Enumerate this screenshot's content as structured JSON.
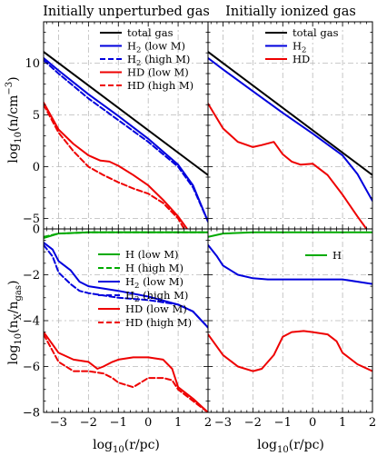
{
  "figure": {
    "titles": [
      "Initially unperturbed gas",
      "Initially ionized gas"
    ],
    "xlabel": "log10(r/pc)",
    "ylabel_top": "log10(n/cm−3)",
    "ylabel_bottom": "log10(nX/ngas)"
  },
  "chart_data": [
    {
      "type": "line",
      "title": "Initially unperturbed gas",
      "xlabel": "",
      "ylabel": "log10(n/cm−3)",
      "xlim": [
        -3.5,
        2
      ],
      "ylim": [
        -6,
        14
      ],
      "xticks": [
        -3,
        -2,
        -1,
        0,
        1,
        2
      ],
      "yticks": [
        -5,
        0,
        5,
        10
      ],
      "grid": true,
      "legend": "top-right",
      "series": [
        {
          "name": "total gas",
          "color": "#000000",
          "dash": "solid",
          "x": [
            -3.5,
            2
          ],
          "y": [
            11.1,
            -0.8
          ]
        },
        {
          "name": "H2 (low M)",
          "color": "#0000dd",
          "dash": "solid",
          "x": [
            -3.5,
            -3.0,
            -2.0,
            -1.0,
            0.0,
            1.0,
            1.5,
            2.0
          ],
          "y": [
            10.5,
            9.3,
            7.0,
            4.9,
            2.7,
            0.2,
            -1.8,
            -5.3
          ]
        },
        {
          "name": "H2 (high M)",
          "color": "#0000dd",
          "dash": "dashed",
          "x": [
            -3.5,
            -3.0,
            -2.0,
            -1.0,
            0.0,
            1.0,
            1.5,
            2.0
          ],
          "y": [
            10.3,
            9.0,
            6.6,
            4.5,
            2.4,
            0.0,
            -2.0,
            -5.3
          ]
        },
        {
          "name": "HD (low M)",
          "color": "#ee0000",
          "dash": "solid",
          "x": [
            -3.5,
            -3.0,
            -2.5,
            -2.0,
            -1.6,
            -1.3,
            -1.0,
            -0.5,
            0.0,
            0.5,
            1.0,
            1.3
          ],
          "y": [
            6.2,
            3.6,
            2.2,
            1.1,
            0.6,
            0.5,
            0.1,
            -0.8,
            -1.8,
            -3.2,
            -4.8,
            -6.0
          ]
        },
        {
          "name": "HD (high M)",
          "color": "#ee0000",
          "dash": "dashed",
          "x": [
            -3.5,
            -3.0,
            -2.5,
            -2.0,
            -1.5,
            -1.0,
            -0.5,
            0.0,
            0.5,
            1.0,
            1.2
          ],
          "y": [
            6.0,
            3.3,
            1.5,
            0.0,
            -0.8,
            -1.5,
            -2.1,
            -2.6,
            -3.5,
            -5.0,
            -6.0
          ]
        }
      ]
    },
    {
      "type": "line",
      "title": "Initially ionized gas",
      "xlabel": "",
      "ylabel": "",
      "xlim": [
        -3.5,
        2
      ],
      "ylim": [
        -6,
        14
      ],
      "xticks": [
        -3,
        -2,
        -1,
        0,
        1,
        2
      ],
      "yticks": [
        -5,
        0,
        5,
        10
      ],
      "grid": true,
      "legend": "top-right",
      "series": [
        {
          "name": "total gas",
          "color": "#000000",
          "dash": "solid",
          "x": [
            -3.5,
            2
          ],
          "y": [
            11.1,
            -0.8
          ]
        },
        {
          "name": "H2",
          "color": "#0000dd",
          "dash": "solid",
          "x": [
            -3.5,
            -3.0,
            -2.0,
            -1.0,
            0.0,
            1.0,
            1.5,
            2.0
          ],
          "y": [
            10.5,
            9.4,
            7.3,
            5.2,
            3.2,
            1.1,
            -0.7,
            -3.3
          ]
        },
        {
          "name": "HD",
          "color": "#ee0000",
          "dash": "solid",
          "x": [
            -3.5,
            -3.0,
            -2.5,
            -2.0,
            -1.7,
            -1.3,
            -1.0,
            -0.7,
            -0.4,
            0.0,
            0.5,
            1.0,
            1.5,
            1.8
          ],
          "y": [
            6.1,
            3.7,
            2.4,
            1.9,
            2.1,
            2.4,
            1.2,
            0.5,
            0.2,
            0.3,
            -0.8,
            -2.7,
            -4.8,
            -6.0
          ]
        }
      ]
    },
    {
      "type": "line",
      "title": "",
      "xlabel": "log10(r/pc)",
      "ylabel": "log10(nX/ngas)",
      "xlim": [
        -3.5,
        2
      ],
      "ylim": [
        -8,
        0
      ],
      "xticks": [
        -3,
        -2,
        -1,
        0,
        1,
        2
      ],
      "yticks": [
        -8,
        -6,
        -4,
        -2,
        0
      ],
      "grid": true,
      "legend": "upper-right",
      "series": [
        {
          "name": "H (low M)",
          "color": "#00aa00",
          "dash": "solid",
          "x": [
            -3.5,
            -3.0,
            -2.0,
            2.0
          ],
          "y": [
            -0.4,
            -0.2,
            -0.15,
            -0.15
          ]
        },
        {
          "name": "H (high M)",
          "color": "#00aa00",
          "dash": "dashed",
          "x": [
            -3.5,
            -3.0,
            -2.0,
            2.0
          ],
          "y": [
            -0.35,
            -0.2,
            -0.15,
            -0.15
          ]
        },
        {
          "name": "H2 (low M)",
          "color": "#0000dd",
          "dash": "solid",
          "x": [
            -3.5,
            -3.2,
            -3.0,
            -2.6,
            -2.3,
            -2.0,
            -1.5,
            -1.0,
            0.0,
            1.0,
            1.5,
            2.0
          ],
          "y": [
            -0.6,
            -0.9,
            -1.4,
            -1.8,
            -2.3,
            -2.5,
            -2.6,
            -2.7,
            -2.95,
            -3.3,
            -3.6,
            -4.3
          ]
        },
        {
          "name": "H2 (high M)",
          "color": "#0000dd",
          "dash": "dashed",
          "x": [
            -3.5,
            -3.2,
            -3.0,
            -2.6,
            -2.3,
            -2.0,
            -1.5,
            -1.0,
            0.0,
            1.0,
            1.5,
            2.0
          ],
          "y": [
            -0.7,
            -1.2,
            -1.9,
            -2.4,
            -2.7,
            -2.8,
            -2.9,
            -3.0,
            -3.1,
            -3.3,
            -3.6,
            -4.3
          ]
        },
        {
          "name": "HD (low M)",
          "color": "#ee0000",
          "dash": "solid",
          "x": [
            -3.5,
            -3.0,
            -2.5,
            -2.0,
            -1.7,
            -1.5,
            -1.2,
            -1.0,
            -0.5,
            0.0,
            0.5,
            0.8,
            1.0,
            1.5,
            2.0
          ],
          "y": [
            -4.5,
            -5.4,
            -5.7,
            -5.8,
            -6.1,
            -6.0,
            -5.8,
            -5.7,
            -5.6,
            -5.6,
            -5.7,
            -6.1,
            -6.9,
            -7.4,
            -8.0
          ]
        },
        {
          "name": "HD (high M)",
          "color": "#ee0000",
          "dash": "dashed",
          "x": [
            -3.5,
            -3.0,
            -2.5,
            -2.0,
            -1.5,
            -1.2,
            -1.0,
            -0.5,
            0.0,
            0.5,
            0.8,
            1.0,
            1.5,
            2.0
          ],
          "y": [
            -4.6,
            -5.8,
            -6.2,
            -6.2,
            -6.3,
            -6.5,
            -6.7,
            -6.9,
            -6.5,
            -6.5,
            -6.6,
            -7.0,
            -7.5,
            -8.0
          ]
        }
      ]
    },
    {
      "type": "line",
      "title": "",
      "xlabel": "log10(r/pc)",
      "ylabel": "",
      "xlim": [
        -3.5,
        2
      ],
      "ylim": [
        -8,
        0
      ],
      "xticks": [
        -3,
        -2,
        -1,
        0,
        1,
        2
      ],
      "yticks": [
        -8,
        -6,
        -4,
        -2,
        0
      ],
      "grid": true,
      "legend": "upper-right",
      "series": [
        {
          "name": "H",
          "color": "#00aa00",
          "dash": "solid",
          "x": [
            -3.5,
            -3.0,
            -2.0,
            2.0
          ],
          "y": [
            -0.35,
            -0.2,
            -0.15,
            -0.15
          ]
        },
        {
          "name": "",
          "color": "#0000dd",
          "dash": "solid",
          "x": [
            -3.5,
            -3.2,
            -3.0,
            -2.5,
            -2.0,
            -1.5,
            -1.0,
            0.0,
            1.0,
            2.0
          ],
          "y": [
            -0.7,
            -1.2,
            -1.6,
            -2.0,
            -2.15,
            -2.2,
            -2.2,
            -2.2,
            -2.2,
            -2.4
          ]
        },
        {
          "name": "",
          "color": "#ee0000",
          "dash": "solid",
          "x": [
            -3.5,
            -3.0,
            -2.5,
            -2.0,
            -1.7,
            -1.3,
            -1.0,
            -0.7,
            -0.3,
            0.0,
            0.5,
            0.8,
            1.0,
            1.5,
            2.0
          ],
          "y": [
            -4.6,
            -5.5,
            -6.0,
            -6.2,
            -6.1,
            -5.5,
            -4.7,
            -4.5,
            -4.45,
            -4.5,
            -4.6,
            -4.9,
            -5.4,
            -5.9,
            -6.2
          ]
        }
      ]
    }
  ]
}
